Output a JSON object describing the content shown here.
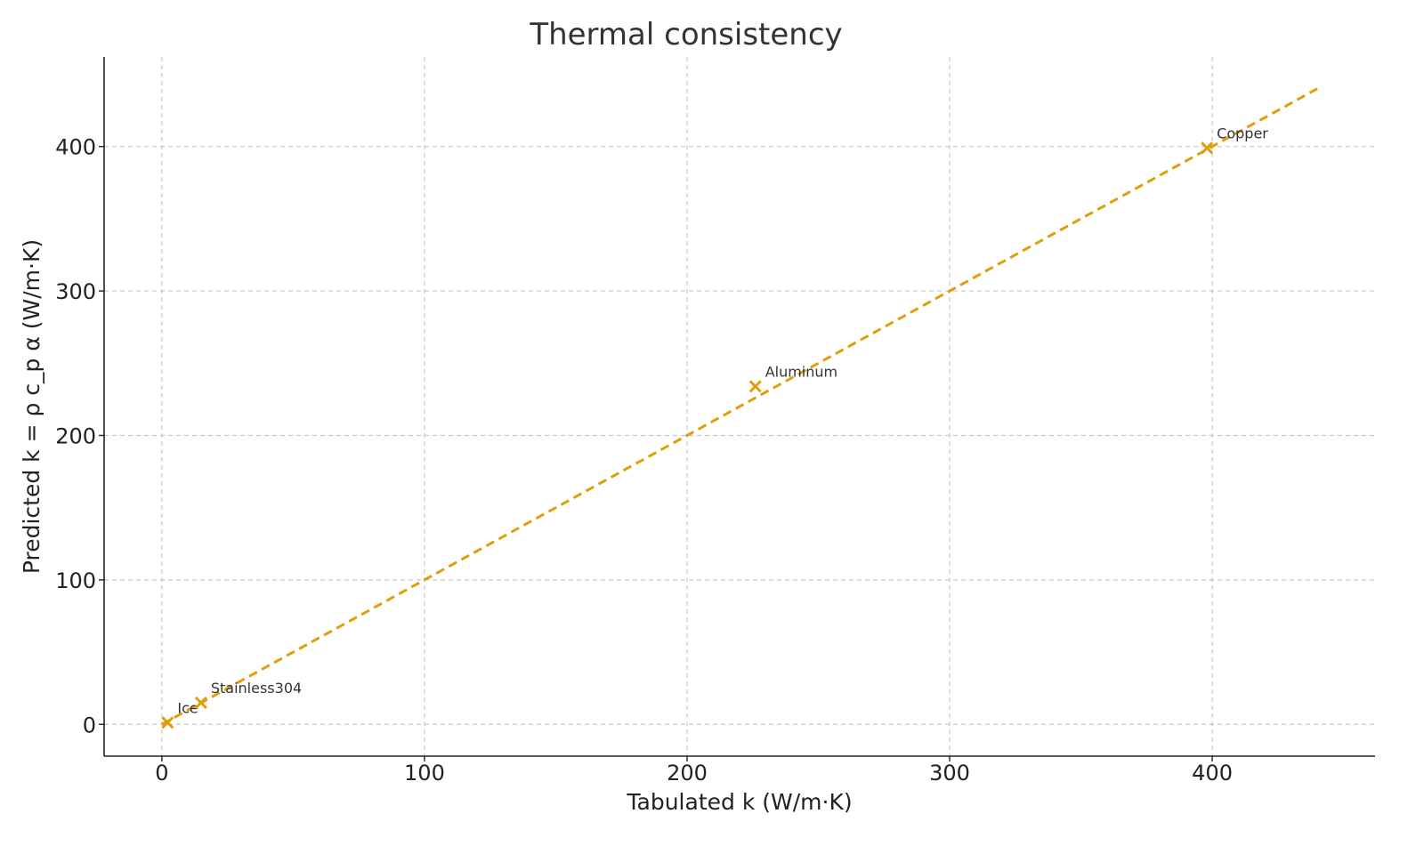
{
  "chart_data": {
    "type": "scatter",
    "title": "Thermal consistency",
    "xlabel": "Tabulated k (W/m·K)",
    "ylabel": "Predicted k = ρ c_p α (W/m·K)",
    "xlim": [
      -22,
      462
    ],
    "ylim": [
      -22,
      462
    ],
    "xticks": [
      0,
      100,
      200,
      300,
      400
    ],
    "yticks": [
      0,
      100,
      200,
      300,
      400
    ],
    "grid": true,
    "color": "#E09F0A",
    "reference_line": {
      "x": [
        0,
        440
      ],
      "y": [
        0,
        440
      ],
      "style": "dashed"
    },
    "points": [
      {
        "label": "Ice",
        "x": 2.2,
        "y": 1.2
      },
      {
        "label": "Stainless304",
        "x": 14.9,
        "y": 15
      },
      {
        "label": "Aluminum",
        "x": 226,
        "y": 234
      },
      {
        "label": "Copper",
        "x": 398,
        "y": 399
      }
    ]
  }
}
